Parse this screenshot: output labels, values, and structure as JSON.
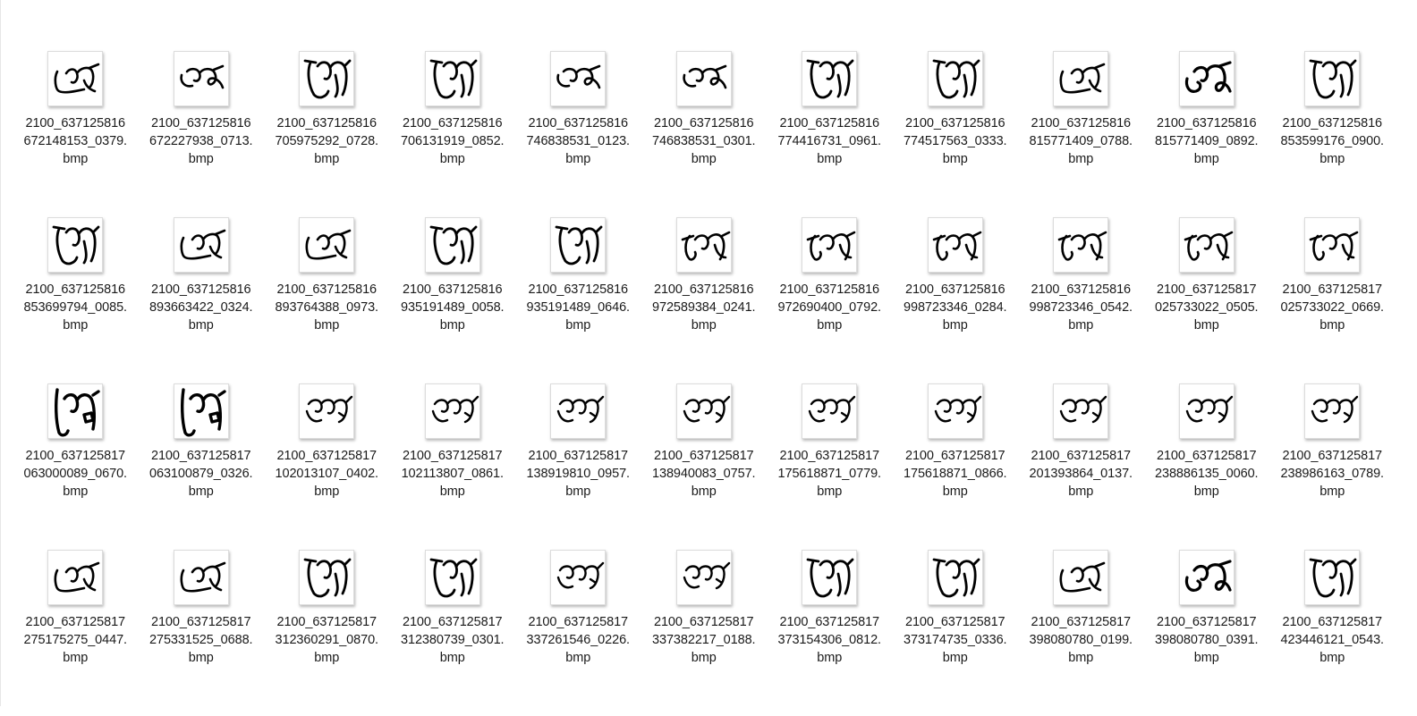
{
  "files": [
    {
      "l1": "2100_637125816",
      "l2": "672148153_0379.",
      "l3": "bmp",
      "v": 0
    },
    {
      "l1": "2100_637125816",
      "l2": "672227938_0713.",
      "l3": "bmp",
      "v": 1
    },
    {
      "l1": "2100_637125816",
      "l2": "705975292_0728.",
      "l3": "bmp",
      "v": 2
    },
    {
      "l1": "2100_637125816",
      "l2": "706131919_0852.",
      "l3": "bmp",
      "v": 2
    },
    {
      "l1": "2100_637125816",
      "l2": "746838531_0123.",
      "l3": "bmp",
      "v": 1
    },
    {
      "l1": "2100_637125816",
      "l2": "746838531_0301.",
      "l3": "bmp",
      "v": 1
    },
    {
      "l1": "2100_637125816",
      "l2": "774416731_0961.",
      "l3": "bmp",
      "v": 2
    },
    {
      "l1": "2100_637125816",
      "l2": "774517563_0333.",
      "l3": "bmp",
      "v": 2
    },
    {
      "l1": "2100_637125816",
      "l2": "815771409_0788.",
      "l3": "bmp",
      "v": 0
    },
    {
      "l1": "2100_637125816",
      "l2": "815771409_0892.",
      "l3": "bmp",
      "v": 4
    },
    {
      "l1": "2100_637125816",
      "l2": "853599176_0900.",
      "l3": "bmp",
      "v": 2
    },
    {
      "l1": "2100_637125816",
      "l2": "853699794_0085.",
      "l3": "bmp",
      "v": 2
    },
    {
      "l1": "2100_637125816",
      "l2": "893663422_0324.",
      "l3": "bmp",
      "v": 0
    },
    {
      "l1": "2100_637125816",
      "l2": "893764388_0973.",
      "l3": "bmp",
      "v": 0
    },
    {
      "l1": "2100_637125816",
      "l2": "935191489_0058.",
      "l3": "bmp",
      "v": 2
    },
    {
      "l1": "2100_637125816",
      "l2": "935191489_0646.",
      "l3": "bmp",
      "v": 2
    },
    {
      "l1": "2100_637125816",
      "l2": "972589384_0241.",
      "l3": "bmp",
      "v": 3
    },
    {
      "l1": "2100_637125816",
      "l2": "972690400_0792.",
      "l3": "bmp",
      "v": 3
    },
    {
      "l1": "2100_637125816",
      "l2": "998723346_0284.",
      "l3": "bmp",
      "v": 3
    },
    {
      "l1": "2100_637125816",
      "l2": "998723346_0542.",
      "l3": "bmp",
      "v": 3
    },
    {
      "l1": "2100_637125817",
      "l2": "025733022_0505.",
      "l3": "bmp",
      "v": 3
    },
    {
      "l1": "2100_637125817",
      "l2": "025733022_0669.",
      "l3": "bmp",
      "v": 3
    },
    {
      "l1": "2100_637125817",
      "l2": "063000089_0670.",
      "l3": "bmp",
      "v": 5
    },
    {
      "l1": "2100_637125817",
      "l2": "063100879_0326.",
      "l3": "bmp",
      "v": 5
    },
    {
      "l1": "2100_637125817",
      "l2": "102013107_0402.",
      "l3": "bmp",
      "v": 6
    },
    {
      "l1": "2100_637125817",
      "l2": "102113807_0861.",
      "l3": "bmp",
      "v": 6
    },
    {
      "l1": "2100_637125817",
      "l2": "138919810_0957.",
      "l3": "bmp",
      "v": 6
    },
    {
      "l1": "2100_637125817",
      "l2": "138940083_0757.",
      "l3": "bmp",
      "v": 6
    },
    {
      "l1": "2100_637125817",
      "l2": "175618871_0779.",
      "l3": "bmp",
      "v": 6
    },
    {
      "l1": "2100_637125817",
      "l2": "175618871_0866.",
      "l3": "bmp",
      "v": 6
    },
    {
      "l1": "2100_637125817",
      "l2": "201393864_0137.",
      "l3": "bmp",
      "v": 6
    },
    {
      "l1": "2100_637125817",
      "l2": "238886135_0060.",
      "l3": "bmp",
      "v": 6
    },
    {
      "l1": "2100_637125817",
      "l2": "238986163_0789.",
      "l3": "bmp",
      "v": 6
    },
    {
      "l1": "2100_637125817",
      "l2": "275175275_0447.",
      "l3": "bmp",
      "v": 0
    },
    {
      "l1": "2100_637125817",
      "l2": "275331525_0688.",
      "l3": "bmp",
      "v": 0
    },
    {
      "l1": "2100_637125817",
      "l2": "312360291_0870.",
      "l3": "bmp",
      "v": 2
    },
    {
      "l1": "2100_637125817",
      "l2": "312380739_0301.",
      "l3": "bmp",
      "v": 2
    },
    {
      "l1": "2100_637125817",
      "l2": "337261546_0226.",
      "l3": "bmp",
      "v": 6
    },
    {
      "l1": "2100_637125817",
      "l2": "337382217_0188.",
      "l3": "bmp",
      "v": 6
    },
    {
      "l1": "2100_637125817",
      "l2": "373154306_0812.",
      "l3": "bmp",
      "v": 2
    },
    {
      "l1": "2100_637125817",
      "l2": "373174735_0336.",
      "l3": "bmp",
      "v": 2
    },
    {
      "l1": "2100_637125817",
      "l2": "398080780_0199.",
      "l3": "bmp",
      "v": 0
    },
    {
      "l1": "2100_637125817",
      "l2": "398080780_0391.",
      "l3": "bmp",
      "v": 4
    },
    {
      "l1": "2100_637125817",
      "l2": "423446121_0543.",
      "l3": "bmp",
      "v": 2
    }
  ]
}
